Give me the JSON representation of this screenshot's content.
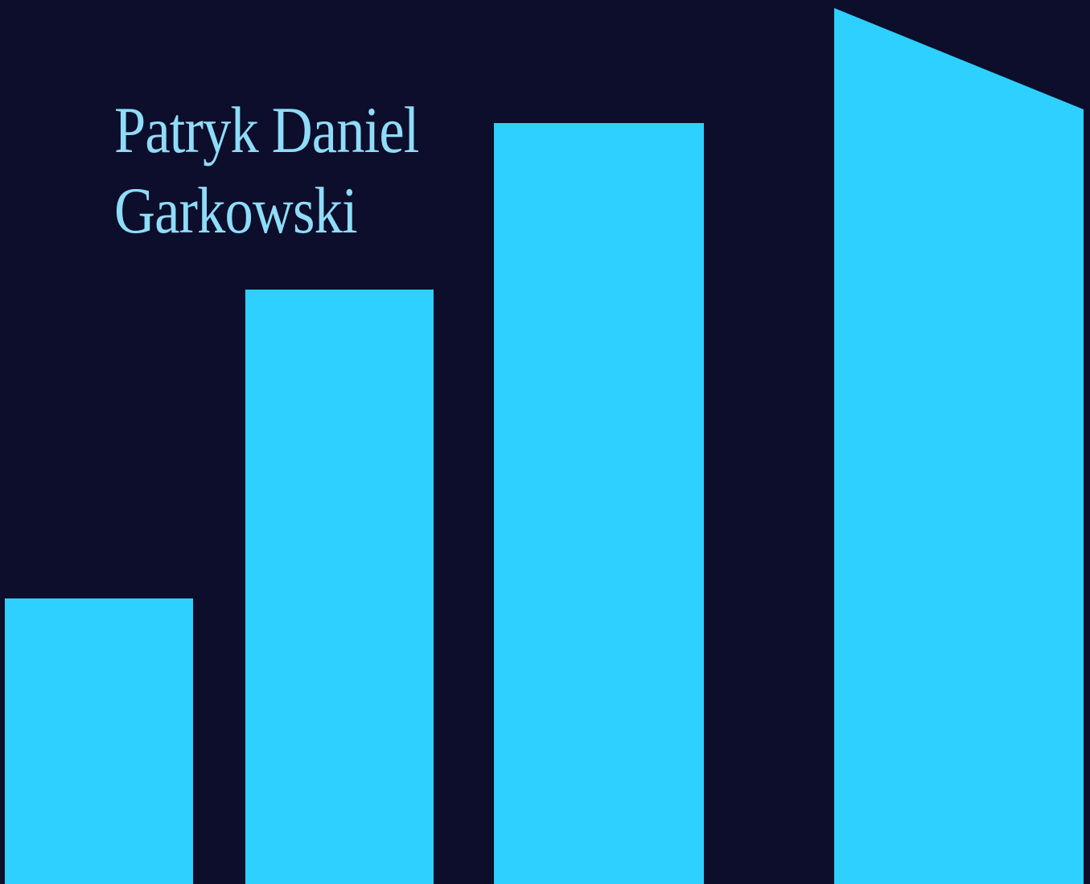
{
  "name": {
    "first_line": "Patryk Daniel",
    "second_line": "Garkowski"
  },
  "colors": {
    "background": "#0c0e2b",
    "bars": "#2dd0fe",
    "name_text": "#8fdcf9"
  }
}
